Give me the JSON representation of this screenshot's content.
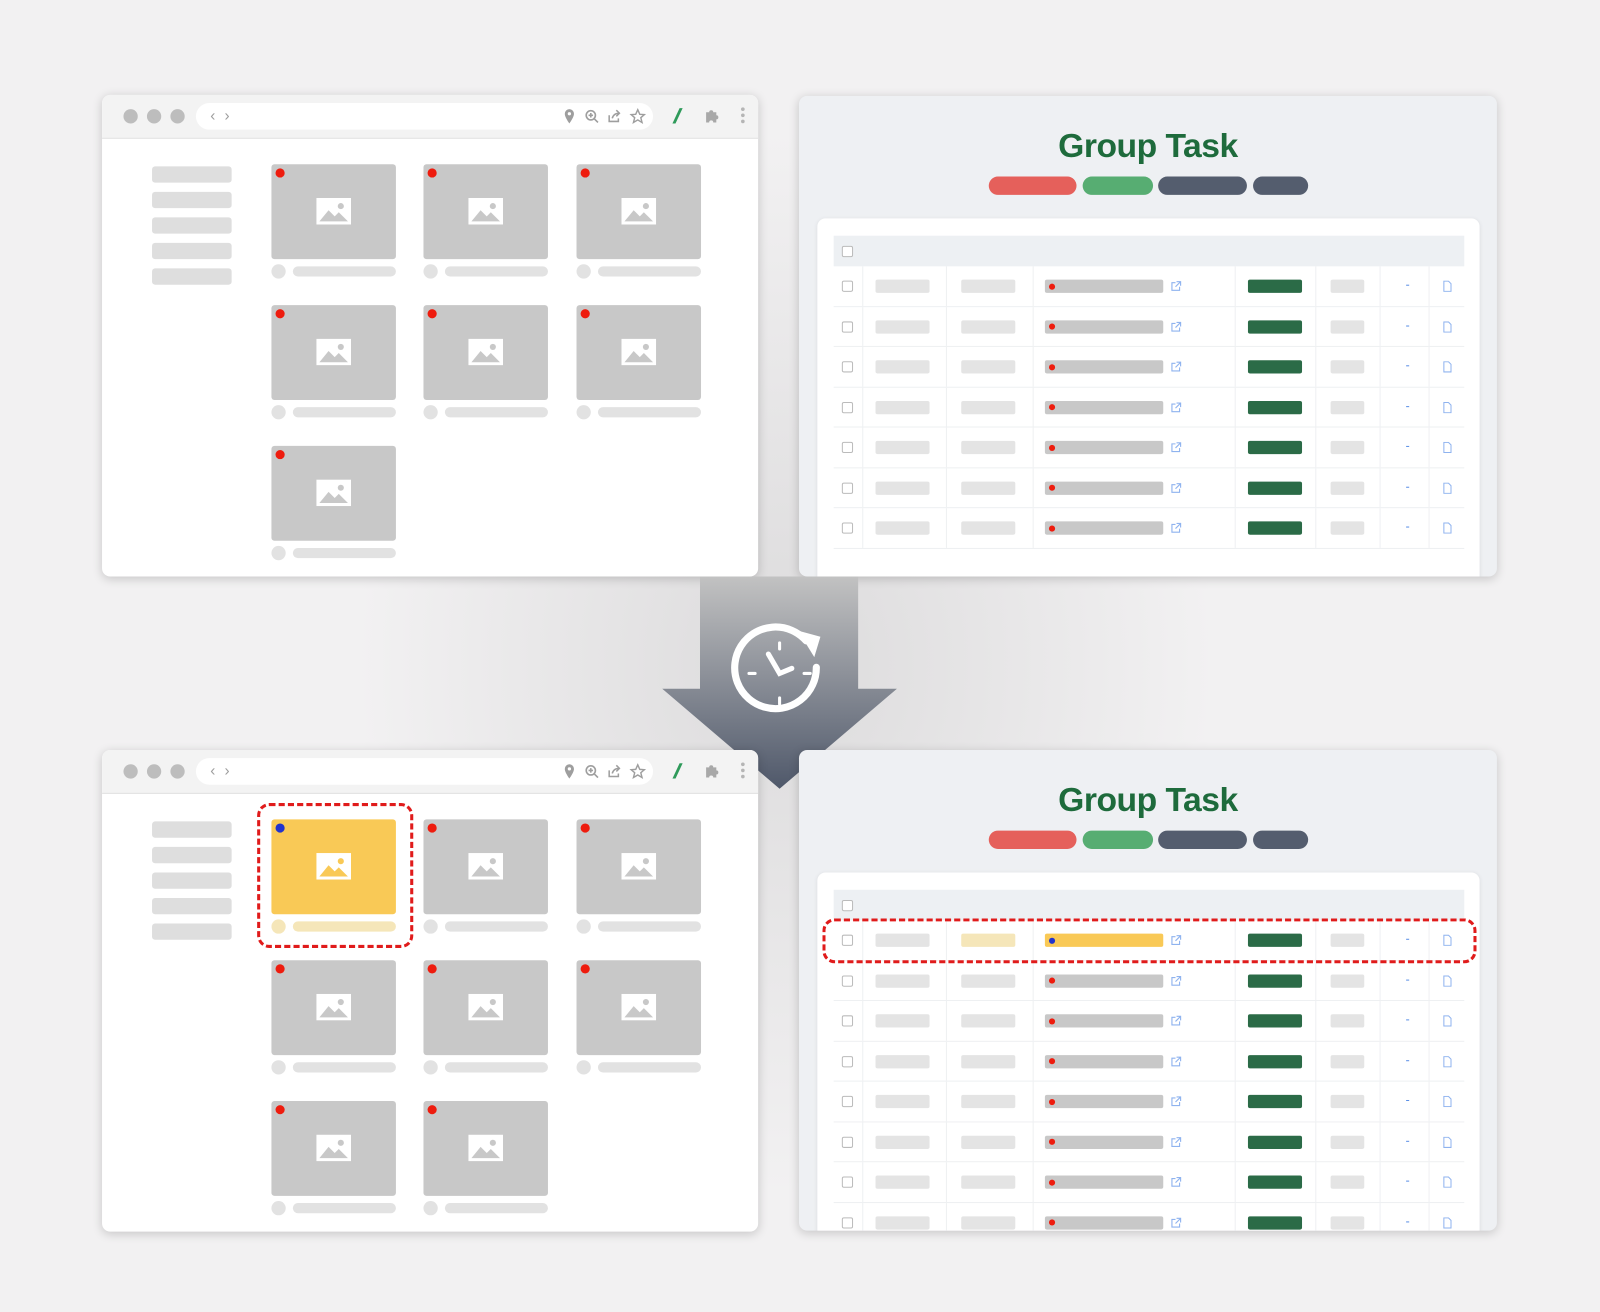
{
  "transition_icon": "clock-refresh-icon",
  "colors": {
    "title_green": "#1e6b3c",
    "pill_red": "#e5605b",
    "pill_green": "#57ad72",
    "pill_dark": "#545d6e",
    "status_green": "#2b6b47",
    "tile_default": "#c8c8c8",
    "tile_selected": "#f9c956",
    "marker_red": "#ee1c0e",
    "marker_blue": "#2233cc",
    "highlight_dash": "#e01b1b"
  },
  "before": {
    "browser": {
      "toolbar_icons": [
        "location-pin-icon",
        "zoom-in-icon",
        "share-icon",
        "star-icon",
        "extension-slash-icon",
        "puzzle-icon",
        "kebab-menu-icon"
      ],
      "tiles": [
        "default",
        "default",
        "default",
        "default",
        "default",
        "default",
        "default"
      ]
    },
    "task_panel": {
      "title": "Group Task",
      "rows": [
        "default",
        "default",
        "default",
        "default",
        "default",
        "default",
        "default"
      ]
    }
  },
  "after": {
    "browser": {
      "toolbar_icons": [
        "location-pin-icon",
        "zoom-in-icon",
        "share-icon",
        "star-icon",
        "extension-slash-icon",
        "puzzle-icon",
        "kebab-menu-icon"
      ],
      "tiles": [
        "selected",
        "default",
        "default",
        "default",
        "default",
        "default",
        "default",
        "default"
      ]
    },
    "task_panel": {
      "title": "Group Task",
      "rows": [
        "selected",
        "default",
        "default",
        "default",
        "default",
        "default",
        "default",
        "default"
      ]
    }
  }
}
